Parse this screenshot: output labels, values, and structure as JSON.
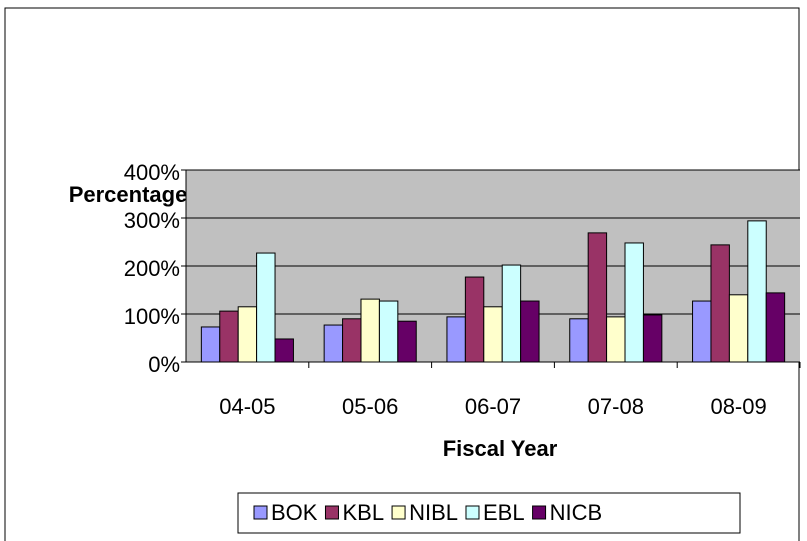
{
  "chart_data": {
    "type": "bar",
    "x_label": "Fiscal Year",
    "y_label": "Percentage",
    "categories": [
      "04-05",
      "05-06",
      "06-07",
      "07-08",
      "08-09"
    ],
    "series": [
      {
        "name": "BOK",
        "color": "#9999ff",
        "values": [
          73,
          77,
          94,
          90,
          127
        ]
      },
      {
        "name": "KBL",
        "color": "#993366",
        "values": [
          106,
          90,
          177,
          269,
          244
        ]
      },
      {
        "name": "NIBL",
        "color": "#ffffcc",
        "values": [
          115,
          131,
          115,
          94,
          140
        ]
      },
      {
        "name": "EBL",
        "color": "#ccffff",
        "values": [
          227,
          127,
          202,
          248,
          294
        ]
      },
      {
        "name": "NICB",
        "color": "#660066",
        "values": [
          48,
          85,
          127,
          98,
          144
        ]
      }
    ],
    "ylim": [
      0,
      400
    ],
    "yticks": [
      {
        "value": 0,
        "label": "0%"
      },
      {
        "value": 100,
        "label": "100%"
      },
      {
        "value": 200,
        "label": "200%"
      },
      {
        "value": 300,
        "label": "300%"
      },
      {
        "value": 400,
        "label": "400%"
      }
    ],
    "grid": true,
    "legend": "bottom"
  }
}
